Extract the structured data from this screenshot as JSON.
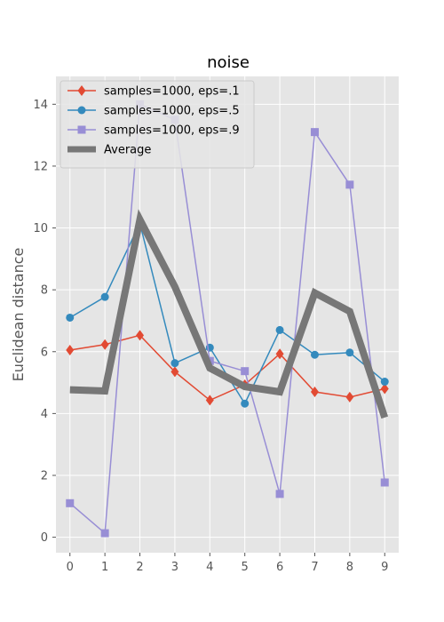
{
  "chart_data": {
    "type": "line",
    "title": "noise",
    "xlabel": "",
    "ylabel": "Euclidean distance",
    "x": [
      0,
      1,
      2,
      3,
      4,
      5,
      6,
      7,
      8,
      9
    ],
    "xlim": [
      -0.4,
      9.4
    ],
    "ylim": [
      -0.5,
      14.9
    ],
    "xticks": [
      0,
      1,
      2,
      3,
      4,
      5,
      6,
      7,
      8,
      9
    ],
    "yticks": [
      0,
      2,
      4,
      6,
      8,
      10,
      12,
      14
    ],
    "grid": true,
    "legend_position": "top-left",
    "series": [
      {
        "name": "samples=1000, eps=.1",
        "color": "#e24a33",
        "marker": "diamond",
        "values": [
          6.05,
          6.23,
          6.53,
          5.35,
          4.43,
          4.93,
          5.93,
          4.7,
          4.53,
          4.8
        ]
      },
      {
        "name": "samples=1000, eps=.5",
        "color": "#348abd",
        "marker": "circle",
        "values": [
          7.1,
          7.77,
          10.15,
          5.63,
          6.13,
          4.32,
          6.7,
          5.9,
          5.97,
          5.03
        ]
      },
      {
        "name": "samples=1000, eps=.9",
        "color": "#988ed5",
        "marker": "square",
        "values": [
          1.1,
          0.13,
          14.0,
          13.5,
          5.7,
          5.37,
          1.4,
          13.1,
          11.4,
          1.77
        ]
      },
      {
        "name": "Average",
        "color": "#777777",
        "marker": "none",
        "thick": true,
        "values": [
          4.77,
          4.73,
          10.27,
          8.1,
          5.47,
          4.87,
          4.7,
          7.9,
          7.3,
          3.87
        ]
      }
    ]
  }
}
